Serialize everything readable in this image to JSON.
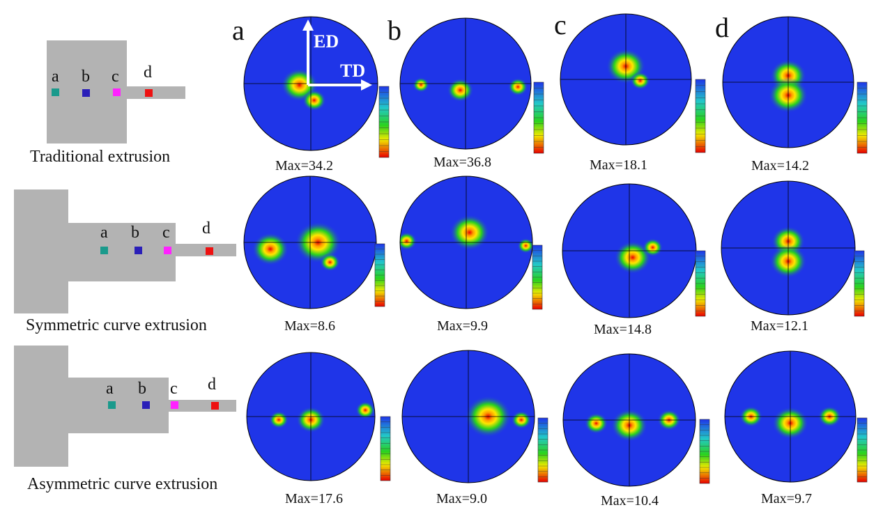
{
  "columns": [
    "a",
    "b",
    "c",
    "d"
  ],
  "point_labels": [
    "a",
    "b",
    "c",
    "d"
  ],
  "marker_colors": [
    "#1a9a8c",
    "#2a1fb8",
    "#ff22ff",
    "#ee1111"
  ],
  "axes": {
    "vertical": "ED",
    "horizontal": "TD"
  },
  "rows": [
    {
      "caption": "Traditional extrusion",
      "max": [
        "Max=34.2",
        "Max=36.8",
        "Max=18.1",
        "Max=14.2"
      ]
    },
    {
      "caption": "Symmetric curve extrusion",
      "max": [
        "Max=8.6",
        "Max=9.9",
        "Max=14.8",
        "Max=12.1"
      ]
    },
    {
      "caption": "Asymmetric curve extrusion",
      "max": [
        "Max=17.6",
        "Max=9.0",
        "Max=10.4",
        "Max=9.7"
      ]
    }
  ],
  "colors": {
    "die": "#b3b3b3",
    "background": "#1f35e8",
    "hot": "#e80000",
    "mid": "#2ad21e"
  }
}
